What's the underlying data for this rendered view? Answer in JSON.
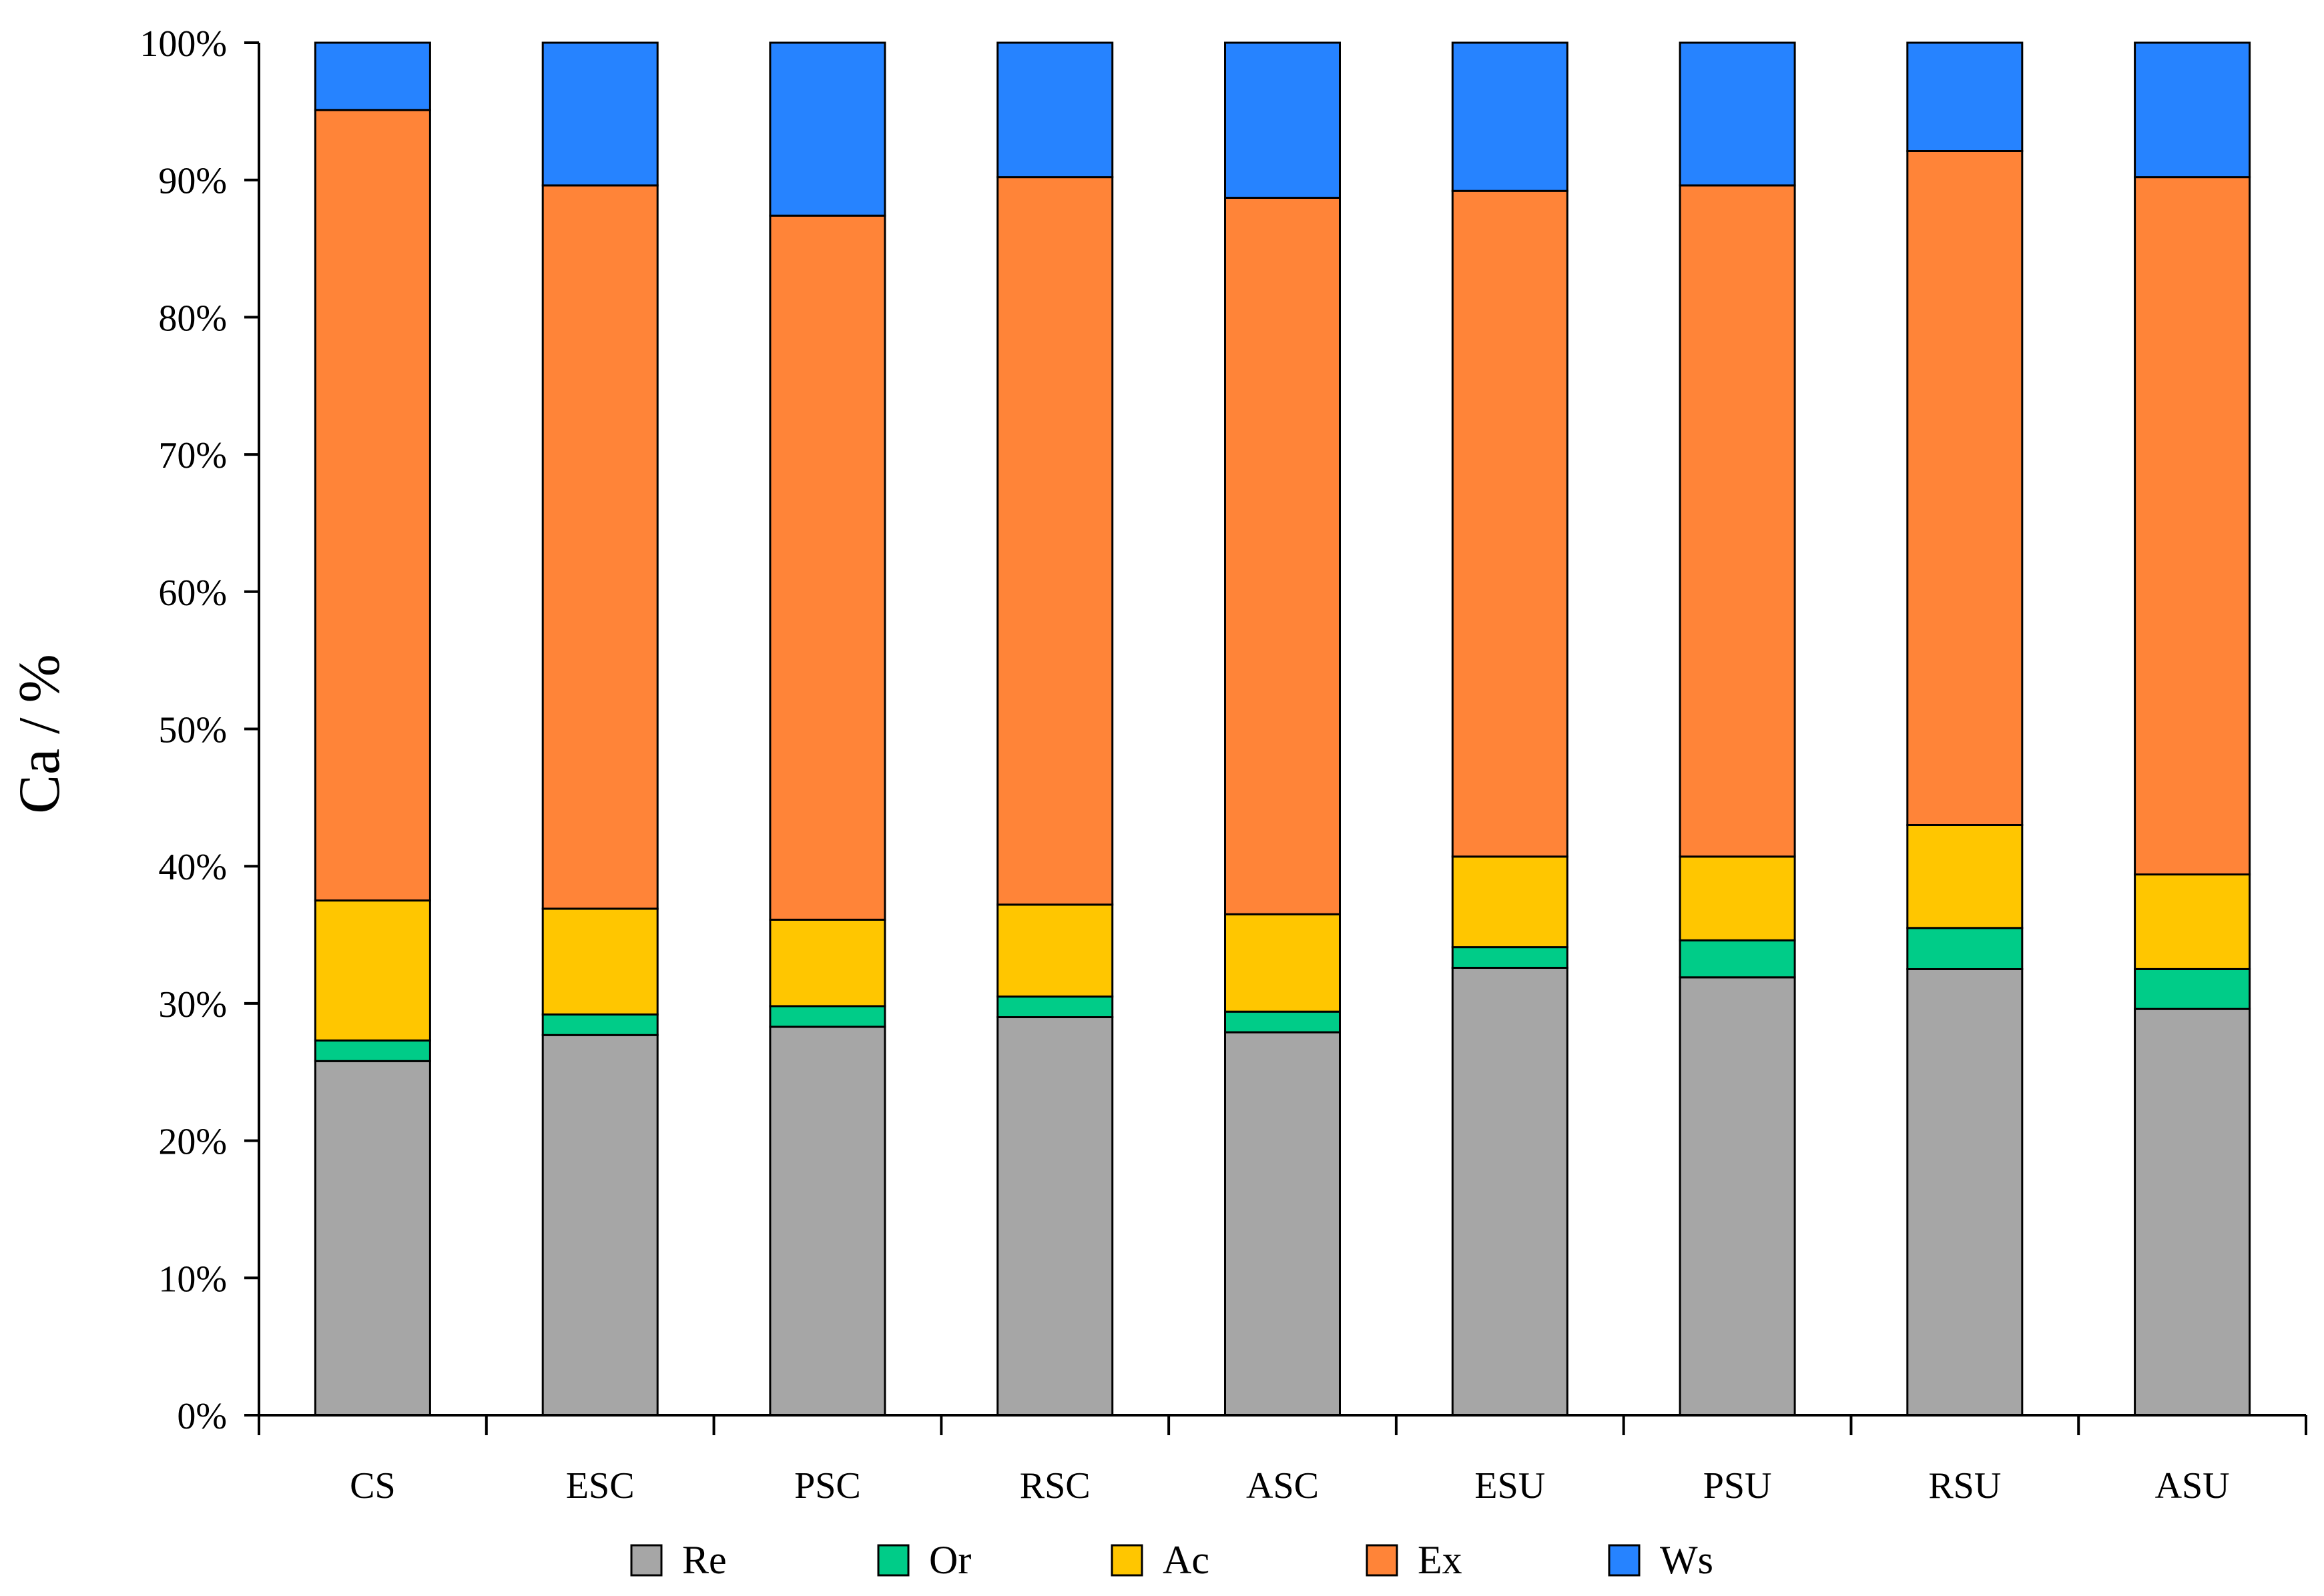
{
  "chart_data": {
    "type": "bar",
    "stacked": "percent",
    "title": "",
    "xlabel": "",
    "ylabel": "Ca / %",
    "ylim": [
      0,
      100
    ],
    "y_ticks": [
      "0%",
      "10%",
      "20%",
      "30%",
      "40%",
      "50%",
      "60%",
      "70%",
      "80%",
      "90%",
      "100%"
    ],
    "grid": false,
    "legend_position": "bottom",
    "categories": [
      "CS",
      "ESC",
      "PSC",
      "RSC",
      "ASC",
      "ESU",
      "PSU",
      "RSU",
      "ASU"
    ],
    "series": [
      {
        "name": "Re",
        "color": "#a6a6a6",
        "values": [
          25.8,
          27.7,
          28.3,
          29.0,
          27.9,
          32.6,
          31.9,
          32.5,
          29.6
        ]
      },
      {
        "name": "Or",
        "color": "#00cc88",
        "values": [
          1.5,
          1.5,
          1.5,
          1.5,
          1.5,
          1.5,
          2.7,
          3.0,
          2.9
        ]
      },
      {
        "name": "Ac",
        "color": "#ffc600",
        "values": [
          10.2,
          7.7,
          6.3,
          6.7,
          7.1,
          6.6,
          6.1,
          7.5,
          6.9
        ]
      },
      {
        "name": "Ex",
        "color": "#ff8438",
        "values": [
          57.6,
          52.7,
          51.3,
          53.0,
          52.2,
          48.5,
          48.9,
          49.1,
          50.8
        ]
      },
      {
        "name": "Ws",
        "color": "#2683ff",
        "values": [
          4.9,
          10.4,
          12.6,
          9.8,
          11.3,
          10.8,
          10.4,
          7.9,
          9.8
        ]
      }
    ]
  }
}
